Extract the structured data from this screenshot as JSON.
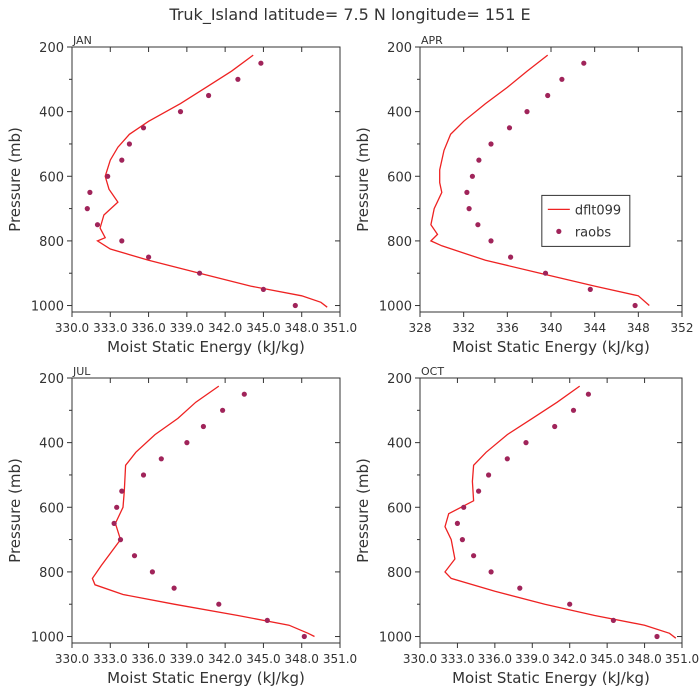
{
  "figure_title": "Truk_Island  latitude= 7.5 N longitude= 151 E",
  "colors": {
    "model": "#ee2222",
    "obs": "#a0245a",
    "axis": "#333333"
  },
  "legend": {
    "model_label": "dflt099",
    "obs_label": "raobs"
  },
  "chart_data": [
    {
      "type": "line",
      "title": "JAN",
      "xlabel": "Moist Static Energy (kJ/kg)",
      "ylabel": "Pressure (mb)",
      "xlim": [
        330.0,
        351.0
      ],
      "ylim": [
        1020,
        200
      ],
      "xticks": [
        330.0,
        333.0,
        336.0,
        339.0,
        342.0,
        345.0,
        348.0,
        351.0
      ],
      "xticklabels": [
        "330.0",
        "333.0",
        "336.0",
        "339.0",
        "342.0",
        "345.0",
        "348.0",
        "351.0"
      ],
      "yticks": [
        200,
        400,
        600,
        800,
        1000
      ],
      "yticklabels": [
        "200",
        "400",
        "600",
        "800",
        "1000"
      ],
      "series": [
        {
          "name": "dflt099",
          "kind": "line",
          "points": [
            [
              344.2,
              225
            ],
            [
              342.5,
              275
            ],
            [
              340.5,
              325
            ],
            [
              338.5,
              375
            ],
            [
              336.0,
              430
            ],
            [
              334.5,
              470
            ],
            [
              333.6,
              510
            ],
            [
              333.0,
              550
            ],
            [
              332.6,
              600
            ],
            [
              332.9,
              640
            ],
            [
              333.6,
              680
            ],
            [
              332.5,
              720
            ],
            [
              332.2,
              760
            ],
            [
              332.6,
              790
            ],
            [
              332.0,
              800
            ],
            [
              333.0,
              825
            ],
            [
              336.0,
              860
            ],
            [
              340.0,
              900
            ],
            [
              344.0,
              940
            ],
            [
              348.0,
              970
            ],
            [
              349.5,
              990
            ],
            [
              350.0,
              1005
            ]
          ]
        },
        {
          "name": "raobs",
          "kind": "scatter",
          "points": [
            [
              344.8,
              250
            ],
            [
              343.0,
              300
            ],
            [
              340.7,
              350
            ],
            [
              338.5,
              400
            ],
            [
              335.6,
              450
            ],
            [
              334.5,
              500
            ],
            [
              333.9,
              550
            ],
            [
              332.8,
              600
            ],
            [
              331.4,
              650
            ],
            [
              331.2,
              700
            ],
            [
              332.0,
              750
            ],
            [
              333.9,
              800
            ],
            [
              336.0,
              850
            ],
            [
              340.0,
              900
            ],
            [
              345.0,
              950
            ],
            [
              347.5,
              1000
            ]
          ]
        }
      ],
      "legend_shown": false
    },
    {
      "type": "line",
      "title": "APR",
      "xlabel": "Moist Static Energy (kJ/kg)",
      "ylabel": "Pressure (mb)",
      "xlim": [
        328,
        352
      ],
      "ylim": [
        1020,
        200
      ],
      "xticks": [
        328,
        332,
        336,
        340,
        344,
        348,
        352
      ],
      "xticklabels": [
        "328",
        "332",
        "336",
        "340",
        "344",
        "348",
        "352"
      ],
      "yticks": [
        200,
        400,
        600,
        800,
        1000
      ],
      "yticklabels": [
        "200",
        "400",
        "600",
        "800",
        "1000"
      ],
      "series": [
        {
          "name": "dflt099",
          "kind": "line",
          "points": [
            [
              339.7,
              225
            ],
            [
              337.8,
              275
            ],
            [
              336.0,
              325
            ],
            [
              334.0,
              375
            ],
            [
              332.0,
              430
            ],
            [
              330.8,
              470
            ],
            [
              330.2,
              520
            ],
            [
              329.8,
              580
            ],
            [
              329.8,
              620
            ],
            [
              330.0,
              650
            ],
            [
              329.3,
              700
            ],
            [
              329.0,
              750
            ],
            [
              329.6,
              780
            ],
            [
              329.0,
              800
            ],
            [
              330.0,
              815
            ],
            [
              334.0,
              860
            ],
            [
              339.0,
              900
            ],
            [
              344.0,
              940
            ],
            [
              348.0,
              970
            ],
            [
              349.0,
              1000
            ]
          ]
        },
        {
          "name": "raobs",
          "kind": "scatter",
          "points": [
            [
              343.0,
              250
            ],
            [
              341.0,
              300
            ],
            [
              339.7,
              350
            ],
            [
              337.8,
              400
            ],
            [
              336.2,
              450
            ],
            [
              334.5,
              500
            ],
            [
              333.4,
              550
            ],
            [
              332.8,
              600
            ],
            [
              332.3,
              650
            ],
            [
              332.5,
              700
            ],
            [
              333.3,
              750
            ],
            [
              334.5,
              800
            ],
            [
              336.3,
              850
            ],
            [
              339.5,
              900
            ],
            [
              343.6,
              950
            ],
            [
              347.7,
              1000
            ]
          ]
        }
      ],
      "legend_shown": true,
      "legend_position": "right-middle"
    },
    {
      "type": "line",
      "title": "JUL",
      "xlabel": "Moist Static Energy (kJ/kg)",
      "ylabel": "Pressure (mb)",
      "xlim": [
        330.0,
        351.0
      ],
      "ylim": [
        1020,
        200
      ],
      "xticks": [
        330.0,
        333.0,
        336.0,
        339.0,
        342.0,
        345.0,
        348.0,
        351.0
      ],
      "xticklabels": [
        "330.0",
        "333.0",
        "336.0",
        "339.0",
        "342.0",
        "345.0",
        "348.0",
        "351.0"
      ],
      "yticks": [
        200,
        400,
        600,
        800,
        1000
      ],
      "yticklabels": [
        "200",
        "400",
        "600",
        "800",
        "1000"
      ],
      "series": [
        {
          "name": "dflt099",
          "kind": "line",
          "points": [
            [
              341.5,
              225
            ],
            [
              339.7,
              275
            ],
            [
              338.3,
              325
            ],
            [
              336.5,
              375
            ],
            [
              335.0,
              430
            ],
            [
              334.2,
              470
            ],
            [
              334.1,
              550
            ],
            [
              334.0,
              600
            ],
            [
              333.4,
              650
            ],
            [
              333.8,
              700
            ],
            [
              332.3,
              780
            ],
            [
              331.6,
              820
            ],
            [
              331.8,
              840
            ],
            [
              334.0,
              870
            ],
            [
              338.0,
              900
            ],
            [
              343.0,
              935
            ],
            [
              347.0,
              965
            ],
            [
              348.5,
              990
            ],
            [
              349.0,
              1000
            ]
          ]
        },
        {
          "name": "raobs",
          "kind": "scatter",
          "points": [
            [
              343.5,
              250
            ],
            [
              341.8,
              300
            ],
            [
              340.3,
              350
            ],
            [
              339.0,
              400
            ],
            [
              337.0,
              450
            ],
            [
              335.6,
              500
            ],
            [
              333.9,
              550
            ],
            [
              333.5,
              600
            ],
            [
              333.3,
              650
            ],
            [
              333.8,
              700
            ],
            [
              334.9,
              750
            ],
            [
              336.3,
              800
            ],
            [
              338.0,
              850
            ],
            [
              341.5,
              900
            ],
            [
              345.3,
              950
            ],
            [
              348.2,
              1000
            ]
          ]
        }
      ],
      "legend_shown": false
    },
    {
      "type": "line",
      "title": "OCT",
      "xlabel": "Moist Static Energy (kJ/kg)",
      "ylabel": "Pressure (mb)",
      "xlim": [
        330.0,
        351.0
      ],
      "ylim": [
        1020,
        200
      ],
      "xticks": [
        330.0,
        333.0,
        336.0,
        339.0,
        342.0,
        345.0,
        348.0,
        351.0
      ],
      "xticklabels": [
        "330.0",
        "333.0",
        "336.0",
        "339.0",
        "342.0",
        "345.0",
        "348.0",
        "351.0"
      ],
      "yticks": [
        200,
        400,
        600,
        800,
        1000
      ],
      "yticklabels": [
        "200",
        "400",
        "600",
        "800",
        "1000"
      ],
      "series": [
        {
          "name": "dflt099",
          "kind": "line",
          "points": [
            [
              342.8,
              225
            ],
            [
              341.0,
              275
            ],
            [
              339.0,
              325
            ],
            [
              337.0,
              375
            ],
            [
              335.3,
              430
            ],
            [
              334.3,
              470
            ],
            [
              334.2,
              520
            ],
            [
              334.3,
              580
            ],
            [
              332.3,
              620
            ],
            [
              332.0,
              660
            ],
            [
              332.5,
              700
            ],
            [
              332.8,
              760
            ],
            [
              332.0,
              800
            ],
            [
              332.5,
              820
            ],
            [
              336.0,
              860
            ],
            [
              340.0,
              900
            ],
            [
              344.0,
              935
            ],
            [
              348.0,
              965
            ],
            [
              350.0,
              990
            ],
            [
              350.5,
              1005
            ]
          ]
        },
        {
          "name": "raobs",
          "kind": "scatter",
          "points": [
            [
              343.5,
              250
            ],
            [
              342.3,
              300
            ],
            [
              340.8,
              350
            ],
            [
              338.5,
              400
            ],
            [
              337.0,
              450
            ],
            [
              335.5,
              500
            ],
            [
              334.7,
              550
            ],
            [
              333.5,
              600
            ],
            [
              333.0,
              650
            ],
            [
              333.4,
              700
            ],
            [
              334.3,
              750
            ],
            [
              335.7,
              800
            ],
            [
              338.0,
              850
            ],
            [
              342.0,
              900
            ],
            [
              345.5,
              950
            ],
            [
              349.0,
              1000
            ]
          ]
        }
      ],
      "legend_shown": false
    }
  ]
}
